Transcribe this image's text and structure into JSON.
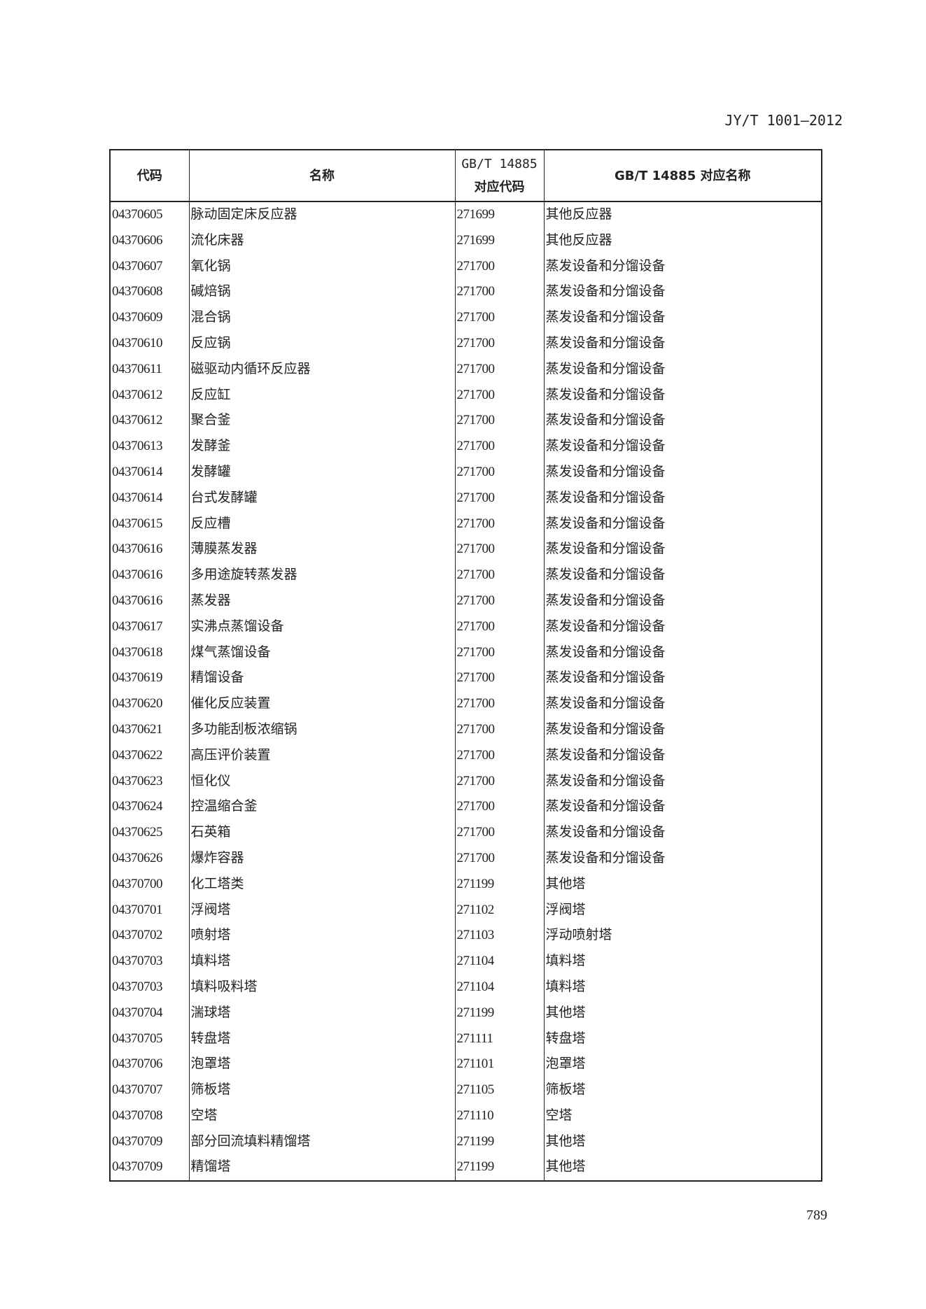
{
  "header": {
    "standard": "JY/T 1001—2012"
  },
  "table": {
    "columns": [
      "代码",
      "名称",
      "GB/T 14885\n对应代码",
      "GB/T 14885 对应名称"
    ],
    "column_lines": [
      [
        "代码"
      ],
      [
        "名称"
      ],
      [
        "GB/T 14885",
        "对应代码"
      ],
      [
        "GB/T 14885 对应名称"
      ]
    ],
    "rows": [
      [
        "04370605",
        "脉动固定床反应器",
        "271699",
        "其他反应器"
      ],
      [
        "04370606",
        "流化床器",
        "271699",
        "其他反应器"
      ],
      [
        "04370607",
        "氧化锅",
        "271700",
        "蒸发设备和分馏设备"
      ],
      [
        "04370608",
        "碱焙锅",
        "271700",
        "蒸发设备和分馏设备"
      ],
      [
        "04370609",
        "混合锅",
        "271700",
        "蒸发设备和分馏设备"
      ],
      [
        "04370610",
        "反应锅",
        "271700",
        "蒸发设备和分馏设备"
      ],
      [
        "04370611",
        "磁驱动内循环反应器",
        "271700",
        "蒸发设备和分馏设备"
      ],
      [
        "04370612",
        "反应缸",
        "271700",
        "蒸发设备和分馏设备"
      ],
      [
        "04370612",
        "聚合釜",
        "271700",
        "蒸发设备和分馏设备"
      ],
      [
        "04370613",
        "发酵釜",
        "271700",
        "蒸发设备和分馏设备"
      ],
      [
        "04370614",
        "发酵罐",
        "271700",
        "蒸发设备和分馏设备"
      ],
      [
        "04370614",
        "台式发酵罐",
        "271700",
        "蒸发设备和分馏设备"
      ],
      [
        "04370615",
        "反应槽",
        "271700",
        "蒸发设备和分馏设备"
      ],
      [
        "04370616",
        "薄膜蒸发器",
        "271700",
        "蒸发设备和分馏设备"
      ],
      [
        "04370616",
        "多用途旋转蒸发器",
        "271700",
        "蒸发设备和分馏设备"
      ],
      [
        "04370616",
        "蒸发器",
        "271700",
        "蒸发设备和分馏设备"
      ],
      [
        "04370617",
        "实沸点蒸馏设备",
        "271700",
        "蒸发设备和分馏设备"
      ],
      [
        "04370618",
        "煤气蒸馏设备",
        "271700",
        "蒸发设备和分馏设备"
      ],
      [
        "04370619",
        "精馏设备",
        "271700",
        "蒸发设备和分馏设备"
      ],
      [
        "04370620",
        "催化反应装置",
        "271700",
        "蒸发设备和分馏设备"
      ],
      [
        "04370621",
        "多功能刮板浓缩锅",
        "271700",
        "蒸发设备和分馏设备"
      ],
      [
        "04370622",
        "高压评价装置",
        "271700",
        "蒸发设备和分馏设备"
      ],
      [
        "04370623",
        "恒化仪",
        "271700",
        "蒸发设备和分馏设备"
      ],
      [
        "04370624",
        "控温缩合釜",
        "271700",
        "蒸发设备和分馏设备"
      ],
      [
        "04370625",
        "石英箱",
        "271700",
        "蒸发设备和分馏设备"
      ],
      [
        "04370626",
        "爆炸容器",
        "271700",
        "蒸发设备和分馏设备"
      ],
      [
        "04370700",
        "化工塔类",
        "271199",
        "其他塔"
      ],
      [
        "04370701",
        "浮阀塔",
        "271102",
        "浮阀塔"
      ],
      [
        "04370702",
        "喷射塔",
        "271103",
        "浮动喷射塔"
      ],
      [
        "04370703",
        "填料塔",
        "271104",
        "填料塔"
      ],
      [
        "04370703",
        "填料吸料塔",
        "271104",
        "填料塔"
      ],
      [
        "04370704",
        "湍球塔",
        "271199",
        "其他塔"
      ],
      [
        "04370705",
        "转盘塔",
        "271111",
        "转盘塔"
      ],
      [
        "04370706",
        "泡罩塔",
        "271101",
        "泡罩塔"
      ],
      [
        "04370707",
        "筛板塔",
        "271105",
        "筛板塔"
      ],
      [
        "04370708",
        "空塔",
        "271110",
        "空塔"
      ],
      [
        "04370709",
        "部分回流填料精馏塔",
        "271199",
        "其他塔"
      ],
      [
        "04370709",
        "精馏塔",
        "271199",
        "其他塔"
      ]
    ]
  },
  "footer": {
    "page_number": "789"
  }
}
